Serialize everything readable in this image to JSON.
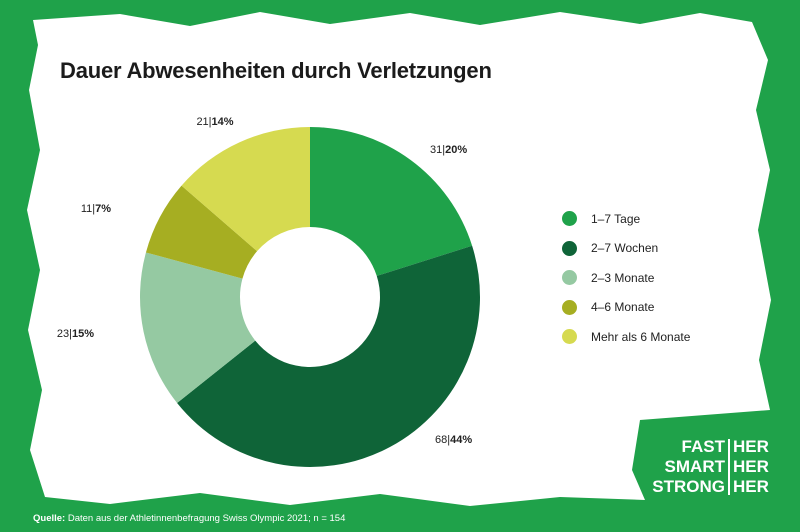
{
  "title": "Dauer Abwesenheiten durch Verletzungen",
  "colors": {
    "background": "#1fa24a",
    "paper": "#ffffff",
    "slice_1": "#1fa24a",
    "slice_2": "#0f6438",
    "slice_3": "#95c9a2",
    "slice_4": "#a6ae22",
    "slice_5": "#d6da50"
  },
  "chart_data": {
    "type": "pie",
    "donut": true,
    "title": "Dauer Abwesenheiten durch Verletzungen",
    "categories": [
      "1–7 Tage",
      "2–7 Wochen",
      "2–3 Monate",
      "4–6 Monate",
      "Mehr als 6 Monate"
    ],
    "values": [
      31,
      68,
      23,
      11,
      21
    ],
    "percent_labels": [
      "20%",
      "44%",
      "15%",
      "7%",
      "14%"
    ],
    "legend_position": "right",
    "n": 154
  },
  "brand": {
    "left": [
      "FAST",
      "SMART",
      "STRONG"
    ],
    "right": [
      "HER",
      "HER",
      "HER"
    ]
  },
  "source": {
    "label": "Quelle:",
    "text": " Daten aus der Athletinnenbefragung Swiss Olympic 2021; n = 154"
  }
}
